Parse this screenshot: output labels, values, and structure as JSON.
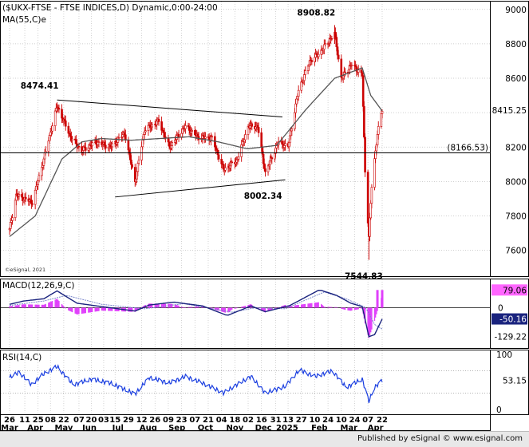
{
  "chart_data": [
    {
      "type": "candlestick",
      "title": "($UKX-FTSE - FTSE INDICES,D) Dynamic,0:00-24:00",
      "overlay_label": "MA(55,C)e",
      "watermark": "©eSignal, 2021",
      "ylim": [
        7450,
        9050
      ],
      "y_ticks": [
        7600,
        7800,
        8000,
        8200,
        8400,
        8600,
        8800,
        9000
      ],
      "last_value": "8415.25",
      "horizontal_line": {
        "value": 8166.53,
        "label": "(8166.53)"
      },
      "annotations": [
        {
          "text": "8474.41",
          "value": 8474.41
        },
        {
          "text": "8908.82",
          "value": 8908.82
        },
        {
          "text": "8002.34",
          "value": 8002.34
        },
        {
          "text": "7544.83",
          "value": 7544.83
        }
      ],
      "trendlines": [
        {
          "name": "upper",
          "from": {
            "date": "2024-05-15",
            "value": 8474
          },
          "to": {
            "date": "2025-01-07",
            "value": 8375
          }
        },
        {
          "name": "lower",
          "from": {
            "date": "2024-07-15",
            "value": 7910
          },
          "to": {
            "date": "2025-01-10",
            "value": 8010
          }
        }
      ],
      "anchors": [
        [
          "2024-03-26",
          7720
        ],
        [
          "2024-04-02",
          7920
        ],
        [
          "2024-04-19",
          7880
        ],
        [
          "2024-05-01",
          8130
        ],
        [
          "2024-05-15",
          8440
        ],
        [
          "2024-05-30",
          8250
        ],
        [
          "2024-06-10",
          8180
        ],
        [
          "2024-06-25",
          8230
        ],
        [
          "2024-07-10",
          8200
        ],
        [
          "2024-07-25",
          8280
        ],
        [
          "2024-08-05",
          8000
        ],
        [
          "2024-08-15",
          8300
        ],
        [
          "2024-08-30",
          8350
        ],
        [
          "2024-09-10",
          8200
        ],
        [
          "2024-09-27",
          8320
        ],
        [
          "2024-10-10",
          8260
        ],
        [
          "2024-10-25",
          8250
        ],
        [
          "2024-11-06",
          8070
        ],
        [
          "2024-11-20",
          8120
        ],
        [
          "2024-12-02",
          8320
        ],
        [
          "2024-12-12",
          8320
        ],
        [
          "2024-12-20",
          8050
        ],
        [
          "2025-01-03",
          8230
        ],
        [
          "2025-01-13",
          8200
        ],
        [
          "2025-01-24",
          8530
        ],
        [
          "2025-02-05",
          8700
        ],
        [
          "2025-02-14",
          8740
        ],
        [
          "2025-03-03",
          8860
        ],
        [
          "2025-03-10",
          8600
        ],
        [
          "2025-03-21",
          8680
        ],
        [
          "2025-04-01",
          8620
        ],
        [
          "2025-04-04",
          8060
        ],
        [
          "2025-04-08",
          7680
        ],
        [
          "2025-04-11",
          7970
        ],
        [
          "2025-04-17",
          8280
        ],
        [
          "2025-04-22",
          8415
        ]
      ],
      "ma_anchors": [
        [
          "2024-03-26",
          7680
        ],
        [
          "2024-04-22",
          7800
        ],
        [
          "2024-05-20",
          8130
        ],
        [
          "2024-06-10",
          8230
        ],
        [
          "2024-07-01",
          8250
        ],
        [
          "2024-08-01",
          8240
        ],
        [
          "2024-09-01",
          8250
        ],
        [
          "2024-10-01",
          8260
        ],
        [
          "2024-11-01",
          8230
        ],
        [
          "2024-12-01",
          8190
        ],
        [
          "2025-01-01",
          8210
        ],
        [
          "2025-02-01",
          8420
        ],
        [
          "2025-03-03",
          8600
        ],
        [
          "2025-04-01",
          8660
        ],
        [
          "2025-04-10",
          8500
        ],
        [
          "2025-04-22",
          8410
        ]
      ]
    },
    {
      "type": "line",
      "title": "MACD(12,26,9,C)",
      "ylim": [
        -180,
        130
      ],
      "zero_line": 0,
      "labels": [
        "79.06",
        "0",
        "-50.16",
        "-129.22"
      ],
      "series": [
        {
          "name": "MACD",
          "anchors": [
            [
              "2024-03-26",
              15
            ],
            [
              "2024-04-10",
              30
            ],
            [
              "2024-05-01",
              40
            ],
            [
              "2024-05-15",
              75
            ],
            [
              "2024-06-05",
              20
            ],
            [
              "2024-07-01",
              5
            ],
            [
              "2024-08-05",
              -15
            ],
            [
              "2024-08-20",
              12
            ],
            [
              "2024-09-15",
              25
            ],
            [
              "2024-10-15",
              8
            ],
            [
              "2024-11-10",
              -35
            ],
            [
              "2024-12-05",
              8
            ],
            [
              "2024-12-20",
              -18
            ],
            [
              "2025-01-15",
              10
            ],
            [
              "2025-02-15",
              80
            ],
            [
              "2025-03-05",
              55
            ],
            [
              "2025-03-20",
              20
            ],
            [
              "2025-04-01",
              5
            ],
            [
              "2025-04-08",
              -129.22
            ],
            [
              "2025-04-14",
              -120
            ],
            [
              "2025-04-22",
              -50.16
            ]
          ]
        },
        {
          "name": "Signal",
          "anchors": [
            [
              "2024-03-26",
              10
            ],
            [
              "2024-05-01",
              30
            ],
            [
              "2024-05-25",
              55
            ],
            [
              "2024-07-01",
              15
            ],
            [
              "2024-08-15",
              -5
            ],
            [
              "2024-09-25",
              18
            ],
            [
              "2024-11-15",
              -20
            ],
            [
              "2024-12-10",
              0
            ],
            [
              "2025-01-10",
              -5
            ],
            [
              "2025-02-20",
              70
            ],
            [
              "2025-03-15",
              40
            ],
            [
              "2025-04-05",
              0
            ],
            [
              "2025-04-14",
              -75
            ],
            [
              "2025-04-22",
              -95
            ]
          ]
        }
      ],
      "histogram_value": 79.06
    },
    {
      "type": "line",
      "title": "RSI(14,C)",
      "ylim": [
        0,
        100
      ],
      "y_ticks": [
        0,
        50,
        100
      ],
      "reference_lines": [
        30,
        70
      ],
      "last_value": "53.15",
      "anchors": [
        [
          "2024-03-26",
          58
        ],
        [
          "2024-04-05",
          68
        ],
        [
          "2024-04-18",
          45
        ],
        [
          "2024-05-01",
          65
        ],
        [
          "2024-05-15",
          78
        ],
        [
          "2024-06-01",
          45
        ],
        [
          "2024-06-20",
          55
        ],
        [
          "2024-07-10",
          48
        ],
        [
          "2024-08-05",
          28
        ],
        [
          "2024-08-20",
          58
        ],
        [
          "2024-09-10",
          48
        ],
        [
          "2024-09-27",
          60
        ],
        [
          "2024-10-15",
          48
        ],
        [
          "2024-11-06",
          30
        ],
        [
          "2024-11-20",
          45
        ],
        [
          "2024-12-05",
          60
        ],
        [
          "2024-12-20",
          30
        ],
        [
          "2025-01-10",
          42
        ],
        [
          "2025-01-25",
          72
        ],
        [
          "2025-02-10",
          60
        ],
        [
          "2025-03-01",
          70
        ],
        [
          "2025-03-15",
          40
        ],
        [
          "2025-04-01",
          55
        ],
        [
          "2025-04-08",
          15
        ],
        [
          "2025-04-14",
          40
        ],
        [
          "2025-04-22",
          53.15
        ]
      ]
    }
  ],
  "x_axis": {
    "date_labels": [
      [
        "2024-03-26",
        "26"
      ],
      [
        "2024-04-11",
        "11"
      ],
      [
        "2024-04-25",
        "25"
      ],
      [
        "2024-05-08",
        "08"
      ],
      [
        "2024-05-22",
        "22"
      ],
      [
        "2024-06-07",
        "07"
      ],
      [
        "2024-06-20",
        "20"
      ],
      [
        "2024-07-03",
        "03"
      ],
      [
        "2024-07-15",
        "15"
      ],
      [
        "2024-07-29",
        "29"
      ],
      [
        "2024-08-12",
        "12"
      ],
      [
        "2024-08-26",
        "26"
      ],
      [
        "2024-09-09",
        "09"
      ],
      [
        "2024-09-23",
        "23"
      ],
      [
        "2024-10-07",
        "07"
      ],
      [
        "2024-10-21",
        "21"
      ],
      [
        "2024-11-04",
        "04"
      ],
      [
        "2024-11-18",
        "18"
      ],
      [
        "2024-12-02",
        "02"
      ],
      [
        "2024-12-16",
        "16"
      ],
      [
        "2024-12-31",
        "31"
      ],
      [
        "2025-01-13",
        "13"
      ],
      [
        "2025-01-27",
        "27"
      ],
      [
        "2025-02-10",
        "10"
      ],
      [
        "2025-02-24",
        "24"
      ],
      [
        "2025-03-10",
        "10"
      ],
      [
        "2025-03-24",
        "24"
      ],
      [
        "2025-04-07",
        "07"
      ],
      [
        "2025-04-22",
        "22"
      ]
    ],
    "month_labels": [
      [
        "2024-03-26",
        "Mar"
      ],
      [
        "2024-04-22",
        "Apr"
      ],
      [
        "2024-05-22",
        "May"
      ],
      [
        "2024-06-18",
        "Jun"
      ],
      [
        "2024-07-18",
        "Jul"
      ],
      [
        "2024-08-19",
        "Aug"
      ],
      [
        "2024-09-18",
        "Sep"
      ],
      [
        "2024-10-18",
        "Oct"
      ],
      [
        "2024-11-18",
        "Nov"
      ],
      [
        "2024-12-18",
        "Dec"
      ],
      [
        "2025-01-12",
        "2025"
      ],
      [
        "2025-02-15",
        "Feb"
      ],
      [
        "2025-03-18",
        "Mar"
      ],
      [
        "2025-04-15",
        "Apr"
      ]
    ]
  },
  "footer": "Published by eSignal © www.esignal.com",
  "colors": {
    "up": "#cc0000",
    "down": "#cc0000",
    "ma": "#555555",
    "macd": "#1a237e",
    "signal": "#7986cb",
    "histogram": "#e040fb",
    "rsi": "#1a3ee0",
    "grid": "#c0c0c0",
    "text": "#000000"
  }
}
